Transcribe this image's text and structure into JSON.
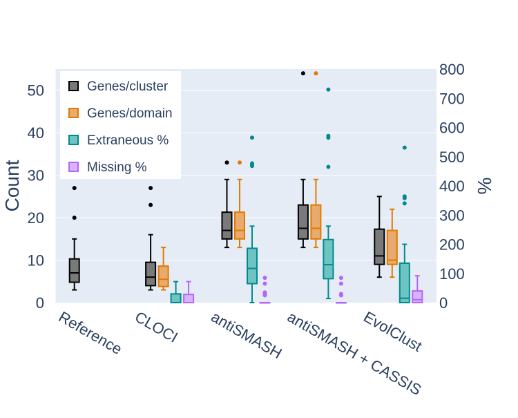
{
  "chart_data": {
    "type": "box",
    "categories": [
      "Reference",
      "CLOCI",
      "antiSMASH",
      "antiSMASH + CASSIS",
      "EvolClust"
    ],
    "y_left": {
      "label": "Count",
      "range": [
        0,
        55
      ],
      "ticks": [
        0,
        10,
        20,
        30,
        40,
        50
      ]
    },
    "y_right": {
      "label": "%",
      "range": [
        0,
        800
      ],
      "ticks": [
        0,
        100,
        200,
        300,
        400,
        500,
        600,
        700,
        800
      ]
    },
    "grid": true,
    "legend_position": "top-left",
    "series": [
      {
        "name": "Genes/cluster",
        "axis": "left",
        "color": "#000000",
        "fill": "#7a7a7a",
        "boxes": [
          {
            "q1": 4.8,
            "median": 7,
            "q3": 10.3,
            "lower": 3,
            "upper": 15,
            "outliers": [
              20,
              27
            ]
          },
          {
            "q1": 4,
            "median": 6,
            "q3": 9.5,
            "lower": 3,
            "upper": 16,
            "outliers": [
              23,
              27
            ]
          },
          {
            "q1": 15,
            "median": 17,
            "q3": 21.3,
            "lower": 13,
            "upper": 29,
            "outliers": [
              33
            ]
          },
          {
            "q1": 15,
            "median": 17.5,
            "q3": 23,
            "lower": 13,
            "upper": 29,
            "outliers": [
              54
            ]
          },
          {
            "q1": 9,
            "median": 11,
            "q3": 17.3,
            "lower": 6,
            "upper": 25,
            "outliers": []
          }
        ]
      },
      {
        "name": "Genes/domain",
        "axis": "left",
        "color": "#e07b00",
        "fill": "#e8aa6e",
        "boxes": [
          null,
          {
            "q1": 3.8,
            "median": 5.5,
            "q3": 8.6,
            "lower": 3,
            "upper": 13,
            "outliers": []
          },
          {
            "q1": 15,
            "median": 17,
            "q3": 21.3,
            "lower": 13,
            "upper": 29,
            "outliers": [
              33
            ]
          },
          {
            "q1": 15,
            "median": 17.5,
            "q3": 23,
            "lower": 13,
            "upper": 29,
            "outliers": [
              54
            ]
          },
          {
            "q1": 9,
            "median": 10,
            "q3": 17,
            "lower": 6,
            "upper": 22,
            "outliers": []
          }
        ]
      },
      {
        "name": "Extraneous %",
        "axis": "right",
        "color": "#008b8b",
        "fill": "#6ec3c3",
        "boxes": [
          null,
          {
            "q1": 0,
            "median": 0,
            "q3": 30,
            "lower": 0,
            "upper": 72,
            "outliers": []
          },
          {
            "q1": 65,
            "median": 117,
            "q3": 186,
            "lower": 0,
            "upper": 262,
            "outliers": [
              468,
              473,
              477,
              565
            ]
          },
          {
            "q1": 82,
            "median": 130,
            "q3": 216,
            "lower": 14,
            "upper": 262,
            "outliers": [
              465,
              565,
              571,
              730
            ]
          },
          {
            "q1": 0,
            "median": 15,
            "q3": 135,
            "lower": 0,
            "upper": 200,
            "outliers": [
              340,
              358,
              364,
              531
            ]
          }
        ]
      },
      {
        "name": "Missing %",
        "axis": "right",
        "color": "#b266ff",
        "fill": "#d9b3ff",
        "boxes": [
          null,
          {
            "q1": 0,
            "median": 0,
            "q3": 28,
            "lower": 0,
            "upper": 72,
            "outliers": []
          },
          {
            "q1": 0,
            "median": 0,
            "q3": 0,
            "lower": 0,
            "upper": 0,
            "outliers": [
              25,
              30,
              35,
              65,
              85
            ]
          },
          {
            "q1": 0,
            "median": 0,
            "q3": 0,
            "lower": 0,
            "upper": 0,
            "outliers": [
              25,
              30,
              65,
              85
            ]
          },
          {
            "q1": 0,
            "median": 10,
            "q3": 40,
            "lower": 0,
            "upper": 92,
            "outliers": []
          }
        ]
      }
    ]
  }
}
